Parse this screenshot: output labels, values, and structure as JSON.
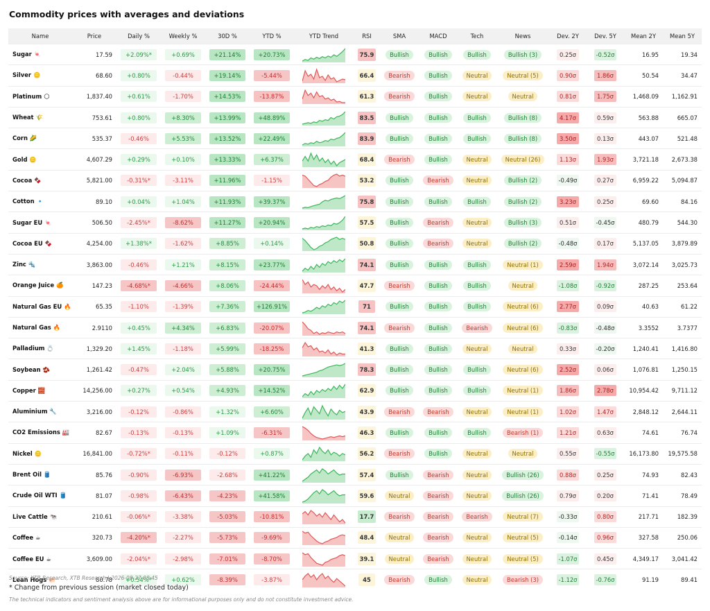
{
  "title": "Commodity prices with averages and deviations",
  "headers": [
    "Name",
    "Price",
    "Daily %",
    "Weekly %",
    "30D %",
    "YTD %",
    "YTD Trend",
    "RSI",
    "SMA",
    "MACD",
    "Tech",
    "News",
    "Dev. 2Y",
    "Dev. 5Y",
    "Mean 2Y",
    "Mean 5Y"
  ],
  "footer": {
    "source": "Source: XTB Research, XTB Research | 2026-08-27 08:45",
    "note": "* Change from previous session (market closed today)",
    "disclaimer": "The technical indicators and sentiment analysis above are for informational purposes only and do not constitute investment advice."
  },
  "chart_data": {
    "type": "table",
    "rows": [
      {
        "name": "Sugar 🍬",
        "price": "17.59",
        "daily": "+2.09%*",
        "weekly": "+0.69%",
        "d30": "+21.14%",
        "ytd": "+20.73%",
        "trend": [
          50,
          45,
          48,
          40,
          44,
          38,
          42,
          36,
          40,
          34,
          38,
          30,
          35,
          28,
          20,
          10
        ],
        "rsi": "75.9",
        "sma": "Bullish",
        "macd": "Bullish",
        "tech": "Bullish",
        "news": "Bullish (3)",
        "dev2y": "0.25σ",
        "dev5y": "-0.52σ",
        "mean2y": "16.95",
        "mean5y": "19.34"
      },
      {
        "name": "Silver 🪙",
        "price": "68.60",
        "daily": "+0.80%",
        "weekly": "-0.44%",
        "d30": "+19.14%",
        "ytd": "-5.44%",
        "trend": [
          45,
          30,
          38,
          35,
          42,
          28,
          40,
          38,
          44,
          36,
          42,
          40,
          46,
          44,
          42,
          43
        ],
        "rsi": "66.4",
        "sma": "Bearish",
        "macd": "Bullish",
        "tech": "Neutral",
        "news": "Neutral (5)",
        "dev2y": "0.90σ",
        "dev5y": "1.86σ",
        "mean2y": "50.54",
        "mean5y": "34.47"
      },
      {
        "name": "Platinum 🌕",
        "price": "1,837.40",
        "daily": "+0.61%",
        "weekly": "-1.70%",
        "d30": "+14.53%",
        "ytd": "-13.87%",
        "trend": [
          40,
          25,
          34,
          30,
          38,
          28,
          36,
          34,
          40,
          38,
          42,
          40,
          45,
          44,
          46,
          46
        ],
        "rsi": "61.3",
        "sma": "Bearish",
        "macd": "Bullish",
        "tech": "Neutral",
        "news": "Neutral",
        "dev2y": "0.81σ",
        "dev5y": "1.75σ",
        "mean2y": "1,468.09",
        "mean5y": "1,162.91"
      },
      {
        "name": "Wheat 🌾",
        "price": "753.61",
        "daily": "+0.80%",
        "weekly": "+8.30%",
        "d30": "+13.99%",
        "ytd": "+48.89%",
        "trend": [
          48,
          46,
          44,
          46,
          42,
          44,
          38,
          40,
          36,
          38,
          30,
          34,
          28,
          26,
          22,
          14
        ],
        "rsi": "83.5",
        "sma": "Bullish",
        "macd": "Bullish",
        "tech": "Bullish",
        "news": "Bullish (8)",
        "dev2y": "4.17σ",
        "dev5y": "0.59σ",
        "mean2y": "563.88",
        "mean5y": "665.07"
      },
      {
        "name": "Corn 🌽",
        "price": "535.37",
        "daily": "-0.46%",
        "weekly": "+5.53%",
        "d30": "+13.52%",
        "ytd": "+22.49%",
        "trend": [
          46,
          42,
          44,
          40,
          42,
          36,
          40,
          38,
          34,
          36,
          30,
          32,
          28,
          26,
          20,
          12
        ],
        "rsi": "83.9",
        "sma": "Bullish",
        "macd": "Bullish",
        "tech": "Bullish",
        "news": "Bullish (8)",
        "dev2y": "3.50σ",
        "dev5y": "0.13σ",
        "mean2y": "443.07",
        "mean5y": "521.48"
      },
      {
        "name": "Gold 🪙",
        "price": "4,607.29",
        "daily": "+0.29%",
        "weekly": "+0.10%",
        "d30": "+13.33%",
        "ytd": "+6.37%",
        "trend": [
          30,
          24,
          30,
          20,
          28,
          22,
          30,
          26,
          32,
          28,
          34,
          30,
          36,
          32,
          30,
          28
        ],
        "rsi": "68.4",
        "sma": "Bearish",
        "macd": "Bullish",
        "tech": "Neutral",
        "news": "Neutral (26)",
        "dev2y": "1.13σ",
        "dev5y": "1.93σ",
        "mean2y": "3,721.18",
        "mean5y": "2,673.38"
      },
      {
        "name": "Cocoa 🍫",
        "price": "5,821.00",
        "daily": "-0.31%*",
        "weekly": "-3.11%",
        "d30": "+11.96%",
        "ytd": "-1.15%",
        "trend": [
          18,
          20,
          26,
          32,
          38,
          40,
          36,
          34,
          30,
          28,
          22,
          18,
          16,
          20,
          18,
          20
        ],
        "rsi": "53.2",
        "sma": "Bullish",
        "macd": "Bearish",
        "tech": "Neutral",
        "news": "Bullish (2)",
        "dev2y": "-0.49σ",
        "dev5y": "0.27σ",
        "mean2y": "6,959.22",
        "mean5y": "5,094.87"
      },
      {
        "name": "Cotton 🔹",
        "price": "89.10",
        "daily": "+0.04%",
        "weekly": "+1.04%",
        "d30": "+11.93%",
        "ytd": "+39.37%",
        "trend": [
          46,
          44,
          45,
          42,
          40,
          38,
          36,
          30,
          26,
          28,
          24,
          22,
          20,
          22,
          18,
          14
        ],
        "rsi": "75.8",
        "sma": "Bullish",
        "macd": "Bullish",
        "tech": "Bullish",
        "news": "Bullish (2)",
        "dev2y": "3.23σ",
        "dev5y": "0.25σ",
        "mean2y": "69.60",
        "mean5y": "84.16"
      },
      {
        "name": "Sugar EU 🍬",
        "price": "506.50",
        "daily": "-2.45%*",
        "weekly": "-8.62%",
        "d30": "+11.27%",
        "ytd": "+20.94%",
        "trend": [
          44,
          42,
          44,
          40,
          42,
          38,
          40,
          36,
          38,
          34,
          36,
          30,
          32,
          28,
          22,
          12
        ],
        "rsi": "57.5",
        "sma": "Bullish",
        "macd": "Bearish",
        "tech": "Neutral",
        "news": "Bullish (3)",
        "dev2y": "0.51σ",
        "dev5y": "-0.45σ",
        "mean2y": "480.79",
        "mean5y": "544.30"
      },
      {
        "name": "Cocoa EU 🍫",
        "price": "4,254.00",
        "daily": "+1.38%*",
        "weekly": "-1.62%",
        "d30": "+8.85%",
        "ytd": "+0.14%",
        "trend": [
          20,
          24,
          30,
          36,
          40,
          38,
          34,
          32,
          28,
          26,
          22,
          20,
          18,
          22,
          20,
          22
        ],
        "rsi": "50.8",
        "sma": "Bullish",
        "macd": "Bearish",
        "tech": "Neutral",
        "news": "Bullish (2)",
        "dev2y": "-0.48σ",
        "dev5y": "0.17σ",
        "mean2y": "5,137.05",
        "mean5y": "3,879.89"
      },
      {
        "name": "Zinc 🔩",
        "price": "3,863.00",
        "daily": "-0.46%",
        "weekly": "+1.21%",
        "d30": "+8.15%",
        "ytd": "+23.77%",
        "trend": [
          42,
          36,
          40,
          32,
          38,
          28,
          34,
          26,
          30,
          22,
          26,
          20,
          24,
          18,
          22,
          16
        ],
        "rsi": "74.1",
        "sma": "Bullish",
        "macd": "Bullish",
        "tech": "Bullish",
        "news": "Neutral (1)",
        "dev2y": "2.59σ",
        "dev5y": "1.94σ",
        "mean2y": "3,072.14",
        "mean5y": "3,025.73"
      },
      {
        "name": "Orange Juice 🍊",
        "price": "147.23",
        "daily": "-4.68%*",
        "weekly": "-4.66%",
        "d30": "+8.06%",
        "ytd": "-24.44%",
        "trend": [
          20,
          28,
          24,
          32,
          28,
          30,
          36,
          30,
          34,
          28,
          36,
          32,
          38,
          34,
          40,
          36
        ],
        "rsi": "47.7",
        "sma": "Bearish",
        "macd": "Bullish",
        "tech": "Bullish",
        "news": "Neutral",
        "dev2y": "-1.08σ",
        "dev5y": "-0.92σ",
        "mean2y": "287.25",
        "mean5y": "253.64"
      },
      {
        "name": "Natural Gas EU 🔥",
        "price": "65.35",
        "daily": "-1.10%",
        "weekly": "-1.39%",
        "d30": "+7.36%",
        "ytd": "+126.91%",
        "trend": [
          48,
          46,
          42,
          44,
          40,
          34,
          38,
          30,
          34,
          26,
          30,
          22,
          26,
          18,
          22,
          16
        ],
        "rsi": "71",
        "sma": "Bullish",
        "macd": "Bullish",
        "tech": "Bullish",
        "news": "Neutral (6)",
        "dev2y": "2.77σ",
        "dev5y": "0.09σ",
        "mean2y": "40.63",
        "mean5y": "61.22"
      },
      {
        "name": "Natural Gas 🔥",
        "price": "2.9110",
        "daily": "+0.45%",
        "weekly": "+4.34%",
        "d30": "+6.83%",
        "ytd": "-20.07%",
        "trend": [
          10,
          18,
          28,
          32,
          40,
          36,
          42,
          38,
          40,
          36,
          38,
          40,
          36,
          38,
          36,
          40
        ],
        "rsi": "74.1",
        "sma": "Bearish",
        "macd": "Bullish",
        "tech": "Bearish",
        "news": "Neutral (6)",
        "dev2y": "-0.83σ",
        "dev5y": "-0.48σ",
        "mean2y": "3.3552",
        "mean5y": "3.7377"
      },
      {
        "name": "Palladium 💍",
        "price": "1,329.20",
        "daily": "+1.45%",
        "weekly": "-1.18%",
        "d30": "+5.99%",
        "ytd": "-18.25%",
        "trend": [
          30,
          20,
          28,
          26,
          34,
          30,
          38,
          36,
          40,
          34,
          42,
          38,
          44,
          40,
          42,
          42
        ],
        "rsi": "41.3",
        "sma": "Bullish",
        "macd": "Bullish",
        "tech": "Neutral",
        "news": "Neutral",
        "dev2y": "0.33σ",
        "dev5y": "-0.20σ",
        "mean2y": "1,240.41",
        "mean5y": "1,416.80"
      },
      {
        "name": "Soybean 🫘",
        "price": "1,261.42",
        "daily": "-0.47%",
        "weekly": "+2.04%",
        "d30": "+5.88%",
        "ytd": "+20.75%",
        "trend": [
          46,
          44,
          42,
          40,
          38,
          36,
          32,
          30,
          26,
          22,
          20,
          18,
          16,
          18,
          16,
          12
        ],
        "rsi": "78.3",
        "sma": "Bullish",
        "macd": "Bullish",
        "tech": "Bullish",
        "news": "Neutral (6)",
        "dev2y": "2.52σ",
        "dev5y": "0.06σ",
        "mean2y": "1,076.81",
        "mean5y": "1,250.15"
      },
      {
        "name": "Copper 🧱",
        "price": "14,256.00",
        "daily": "+0.27%",
        "weekly": "+0.54%",
        "d30": "+4.93%",
        "ytd": "+14.52%",
        "trend": [
          40,
          34,
          38,
          30,
          36,
          28,
          32,
          26,
          30,
          24,
          28,
          20,
          26,
          18,
          24,
          16
        ],
        "rsi": "62.9",
        "sma": "Bullish",
        "macd": "Bullish",
        "tech": "Bullish",
        "news": "Neutral (1)",
        "dev2y": "1.86σ",
        "dev5y": "2.78σ",
        "mean2y": "10,954.42",
        "mean5y": "9,711.12"
      },
      {
        "name": "Aluminium 🔧",
        "price": "3,216.00",
        "daily": "-0.12%",
        "weekly": "-0.86%",
        "d30": "+1.32%",
        "ytd": "+6.60%",
        "trend": [
          40,
          30,
          22,
          34,
          20,
          26,
          32,
          18,
          28,
          36,
          24,
          30,
          34,
          26,
          30,
          28
        ],
        "rsi": "43.9",
        "sma": "Bearish",
        "macd": "Bearish",
        "tech": "Neutral",
        "news": "Neutral (1)",
        "dev2y": "1.02σ",
        "dev5y": "1.47σ",
        "mean2y": "2,848.12",
        "mean5y": "2,644.11"
      },
      {
        "name": "CO2 Emissions 🏭",
        "price": "82.67",
        "daily": "-0.13%",
        "weekly": "-0.13%",
        "d30": "+1.09%",
        "ytd": "-6.31%",
        "trend": [
          10,
          14,
          20,
          28,
          34,
          38,
          40,
          42,
          40,
          38,
          36,
          38,
          36,
          34,
          36,
          34
        ],
        "rsi": "46.3",
        "sma": "Bullish",
        "macd": "Bullish",
        "tech": "Bullish",
        "news": "Bearish (1)",
        "dev2y": "1.21σ",
        "dev5y": "0.63σ",
        "mean2y": "74.61",
        "mean5y": "76.74"
      },
      {
        "name": "Nickel 🪙",
        "price": "16,841.00",
        "daily": "-0.72%*",
        "weekly": "-0.11%",
        "d30": "-0.12%",
        "ytd": "+0.87%",
        "trend": [
          40,
          34,
          30,
          36,
          24,
          30,
          20,
          26,
          30,
          24,
          32,
          28,
          30,
          34,
          30,
          32
        ],
        "rsi": "56.2",
        "sma": "Bearish",
        "macd": "Bullish",
        "tech": "Neutral",
        "news": "Neutral",
        "dev2y": "0.55σ",
        "dev5y": "-0.55σ",
        "mean2y": "16,173.80",
        "mean5y": "19,575.58"
      },
      {
        "name": "Brent Oil 🛢️",
        "price": "85.76",
        "daily": "-0.90%",
        "weekly": "-6.93%",
        "d30": "-2.68%",
        "ytd": "+41.22%",
        "trend": [
          44,
          40,
          36,
          30,
          26,
          22,
          28,
          20,
          24,
          30,
          26,
          22,
          28,
          32,
          30,
          30
        ],
        "rsi": "57.4",
        "sma": "Bullish",
        "macd": "Bearish",
        "tech": "Neutral",
        "news": "Bullish (26)",
        "dev2y": "0.88σ",
        "dev5y": "0.25σ",
        "mean2y": "74.93",
        "mean5y": "82.43"
      },
      {
        "name": "Crude Oil WTI 🛢️",
        "price": "81.07",
        "daily": "-0.98%",
        "weekly": "-6.43%",
        "d30": "-4.23%",
        "ytd": "+41.58%",
        "trend": [
          44,
          42,
          38,
          32,
          26,
          22,
          28,
          20,
          24,
          30,
          26,
          22,
          28,
          32,
          30,
          30
        ],
        "rsi": "59.6",
        "sma": "Neutral",
        "macd": "Bearish",
        "tech": "Neutral",
        "news": "Bullish (26)",
        "dev2y": "0.79σ",
        "dev5y": "0.20σ",
        "mean2y": "71.41",
        "mean5y": "78.49"
      },
      {
        "name": "Live Cattle 🐄",
        "price": "210.61",
        "daily": "-0.06%*",
        "weekly": "-3.38%",
        "d30": "-5.03%",
        "ytd": "-10.81%",
        "trend": [
          24,
          20,
          26,
          18,
          22,
          28,
          24,
          30,
          22,
          28,
          34,
          26,
          32,
          38,
          34,
          40
        ],
        "rsi": "17.7",
        "sma": "Bearish",
        "macd": "Bearish",
        "tech": "Bearish",
        "news": "Neutral (7)",
        "dev2y": "-0.33σ",
        "dev5y": "0.80σ",
        "mean2y": "217.71",
        "mean5y": "182.39"
      },
      {
        "name": "Coffee ☕",
        "price": "320.73",
        "daily": "-4.20%*",
        "weekly": "-2.27%",
        "d30": "-5.73%",
        "ytd": "-9.69%",
        "trend": [
          14,
          18,
          16,
          24,
          30,
          36,
          40,
          42,
          38,
          36,
          32,
          30,
          28,
          24,
          22,
          24
        ],
        "rsi": "48.4",
        "sma": "Neutral",
        "macd": "Bearish",
        "tech": "Neutral",
        "news": "Neutral (5)",
        "dev2y": "-0.14σ",
        "dev5y": "0.96σ",
        "mean2y": "327.58",
        "mean5y": "250.06"
      },
      {
        "name": "Coffee EU ☕",
        "price": "3,609.00",
        "daily": "-2.04%*",
        "weekly": "-2.98%",
        "d30": "-7.01%",
        "ytd": "-8.70%",
        "trend": [
          16,
          20,
          18,
          26,
          32,
          38,
          40,
          42,
          36,
          34,
          30,
          28,
          26,
          22,
          20,
          22
        ],
        "rsi": "39.1",
        "sma": "Neutral",
        "macd": "Bearish",
        "tech": "Neutral",
        "news": "Neutral (5)",
        "dev2y": "-1.07σ",
        "dev5y": "0.45σ",
        "mean2y": "4,349.17",
        "mean5y": "3,041.42"
      },
      {
        "name": "Lean Hogs 🐖",
        "price": "80.78",
        "daily": "+0.54%*",
        "weekly": "+0.62%",
        "d30": "-8.39%",
        "ytd": "-3.87%",
        "trend": [
          30,
          24,
          20,
          26,
          22,
          30,
          24,
          20,
          28,
          24,
          30,
          34,
          28,
          32,
          36,
          40
        ],
        "rsi": "45",
        "sma": "Bearish",
        "macd": "Bullish",
        "tech": "Neutral",
        "news": "Bearish (3)",
        "dev2y": "-1.12σ",
        "dev5y": "-0.76σ",
        "mean2y": "91.19",
        "mean5y": "89.41"
      }
    ]
  }
}
